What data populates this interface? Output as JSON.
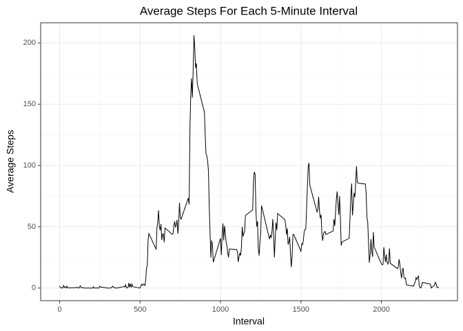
{
  "chart_data": {
    "type": "line",
    "title": "Average Steps For Each 5-Minute Interval",
    "x_label": "Interval",
    "y_label": "Average Steps",
    "color": "#000000",
    "grid": true,
    "xlim": [
      -117.75,
      2472.75
    ],
    "xticks": [
      0,
      500,
      1000,
      1500,
      2000
    ],
    "xminor": [
      250,
      750,
      1250,
      1750,
      2250
    ],
    "ylim": [
      -10.3,
      216.5
    ],
    "yticks": [
      0,
      50,
      100,
      150,
      200
    ],
    "yminor": [
      25,
      75,
      125,
      175
    ],
    "x": [
      0,
      5,
      10,
      15,
      20,
      25,
      30,
      35,
      40,
      45,
      50,
      55,
      100,
      105,
      110,
      115,
      120,
      125,
      130,
      135,
      140,
      145,
      150,
      155,
      200,
      205,
      210,
      215,
      220,
      225,
      230,
      235,
      240,
      245,
      250,
      255,
      300,
      305,
      310,
      315,
      320,
      325,
      330,
      335,
      340,
      345,
      350,
      355,
      400,
      405,
      410,
      415,
      420,
      425,
      430,
      435,
      440,
      445,
      450,
      455,
      500,
      505,
      510,
      515,
      520,
      525,
      530,
      535,
      540,
      545,
      550,
      555,
      600,
      605,
      610,
      615,
      620,
      625,
      630,
      635,
      640,
      645,
      650,
      655,
      700,
      705,
      710,
      715,
      720,
      725,
      730,
      735,
      740,
      745,
      750,
      755,
      800,
      805,
      810,
      815,
      820,
      825,
      830,
      835,
      840,
      845,
      850,
      855,
      900,
      905,
      910,
      915,
      920,
      925,
      930,
      935,
      940,
      945,
      950,
      955,
      1000,
      1005,
      1010,
      1015,
      1020,
      1025,
      1030,
      1035,
      1040,
      1045,
      1050,
      1055,
      1100,
      1105,
      1110,
      1115,
      1120,
      1125,
      1130,
      1135,
      1140,
      1145,
      1150,
      1155,
      1200,
      1205,
      1210,
      1215,
      1220,
      1225,
      1230,
      1235,
      1240,
      1245,
      1250,
      1255,
      1300,
      1305,
      1310,
      1315,
      1320,
      1325,
      1330,
      1335,
      1340,
      1345,
      1350,
      1355,
      1400,
      1405,
      1410,
      1415,
      1420,
      1425,
      1430,
      1435,
      1440,
      1445,
      1450,
      1455,
      1500,
      1505,
      1510,
      1515,
      1520,
      1525,
      1530,
      1535,
      1540,
      1545,
      1550,
      1555,
      1600,
      1605,
      1610,
      1615,
      1620,
      1625,
      1630,
      1635,
      1640,
      1645,
      1650,
      1655,
      1700,
      1705,
      1710,
      1715,
      1720,
      1725,
      1730,
      1735,
      1740,
      1745,
      1750,
      1755,
      1800,
      1805,
      1810,
      1815,
      1820,
      1825,
      1830,
      1835,
      1840,
      1845,
      1850,
      1855,
      1900,
      1905,
      1910,
      1915,
      1920,
      1925,
      1930,
      1935,
      1940,
      1945,
      1950,
      1955,
      2000,
      2005,
      2010,
      2015,
      2020,
      2025,
      2030,
      2035,
      2040,
      2045,
      2050,
      2055,
      2100,
      2105,
      2110,
      2115,
      2120,
      2125,
      2130,
      2135,
      2140,
      2145,
      2150,
      2155,
      2200,
      2205,
      2210,
      2215,
      2220,
      2225,
      2230,
      2235,
      2240,
      2245,
      2250,
      2255,
      2300,
      2305,
      2310,
      2315,
      2320,
      2325,
      2330,
      2335,
      2340,
      2345,
      2350,
      2355
    ],
    "values": [
      1.7,
      0.3,
      0.1,
      0.2,
      0.1,
      2.1,
      0.5,
      0.9,
      0,
      1.5,
      0.3,
      0.1,
      0.3,
      0.7,
      0.2,
      0.3,
      0,
      1.1,
      1.8,
      0.2,
      0.2,
      0.4,
      0.3,
      0,
      0,
      0,
      1.1,
      0,
      0,
      0.1,
      0,
      0.2,
      0,
      0,
      1.5,
      0.9,
      0,
      0,
      0,
      0,
      0.2,
      0.6,
      1.6,
      0.6,
      0.5,
      0.1,
      0,
      0,
      1.2,
      0.9,
      2.6,
      0,
      0.3,
      0.4,
      4.1,
      0.7,
      3.5,
      0.8,
      3.1,
      1.1,
      0,
      1.6,
      3,
      2.2,
      3.3,
      3,
      2.1,
      6.1,
      16,
      18.3,
      39.5,
      44.5,
      31.5,
      49.3,
      53.8,
      63.5,
      50,
      47.1,
      52.2,
      39.3,
      44,
      44.2,
      37.4,
      49,
      43.8,
      44.4,
      50.5,
      54.5,
      49.9,
      51,
      55.7,
      44.3,
      52.3,
      69.5,
      57.8,
      56.2,
      73.4,
      68.2,
      129.4,
      157.5,
      171.2,
      155.4,
      177.3,
      206.2,
      195.9,
      179.6,
      183.4,
      167,
      143.5,
      124,
      109.1,
      108.1,
      103.7,
      96,
      66.2,
      45.2,
      24.8,
      38.8,
      35,
      21.1,
      40.6,
      27,
      42.4,
      52.7,
      38.9,
      50.8,
      44.3,
      37.4,
      34.7,
      28.3,
      25.1,
      31.9,
      31.4,
      29.7,
      21.3,
      25.5,
      28.4,
      26.5,
      33.4,
      50,
      42,
      44.6,
      46,
      59.2,
      63.9,
      87.7,
      94.8,
      92.8,
      63.4,
      50.2,
      54.5,
      32.4,
      26.5,
      37.7,
      45.1,
      67.3,
      42.3,
      39.9,
      43.3,
      41,
      46.2,
      56.4,
      42.8,
      25.1,
      40,
      53.5,
      47.3,
      60.8,
      55.8,
      52,
      43.6,
      48.7,
      35.5,
      37.5,
      41.8,
      27.5,
      17.1,
      26.1,
      43.6,
      43.8,
      30,
      36.1,
      35.5,
      38.8,
      46,
      47.8,
      48.1,
      65.3,
      82.9,
      98.7,
      102.1,
      84,
      62.1,
      64.1,
      74.5,
      63.2,
      56.9,
      59.8,
      43.9,
      38.6,
      44.7,
      45.5,
      46.2,
      43.7,
      46.6,
      56.3,
      50.7,
      61.2,
      72.7,
      78.9,
      68.9,
      59.7,
      75.1,
      56.5,
      34.8,
      37.5,
      40.7,
      58,
      74.7,
      85.3,
      59.3,
      67.8,
      77.7,
      74.2,
      85.3,
      99.5,
      86.6,
      85.6,
      84.9,
      77.8,
      58,
      53.4,
      36.3,
      20.7,
      27.4,
      40,
      30.2,
      25.5,
      45.7,
      33.5,
      19.6,
      19,
      19.3,
      33.3,
      26.8,
      21.2,
      27.3,
      21.3,
      19.5,
      21.3,
      32.3,
      20.2,
      15.9,
      17.2,
      23.5,
      19.2,
      12.5,
      8,
      14.7,
      16.3,
      8.7,
      7.8,
      8.1,
      2.6,
      1.5,
      3.7,
      4.8,
      8.5,
      7.1,
      8.7,
      9.8,
      2.2,
      0.3,
      0.1,
      1.6,
      4.6,
      3.3,
      2.8,
      0,
      0.8,
      1,
      1.6,
      2.6,
      4.7,
      3.3,
      0.6,
      0.2,
      1.1
    ]
  }
}
